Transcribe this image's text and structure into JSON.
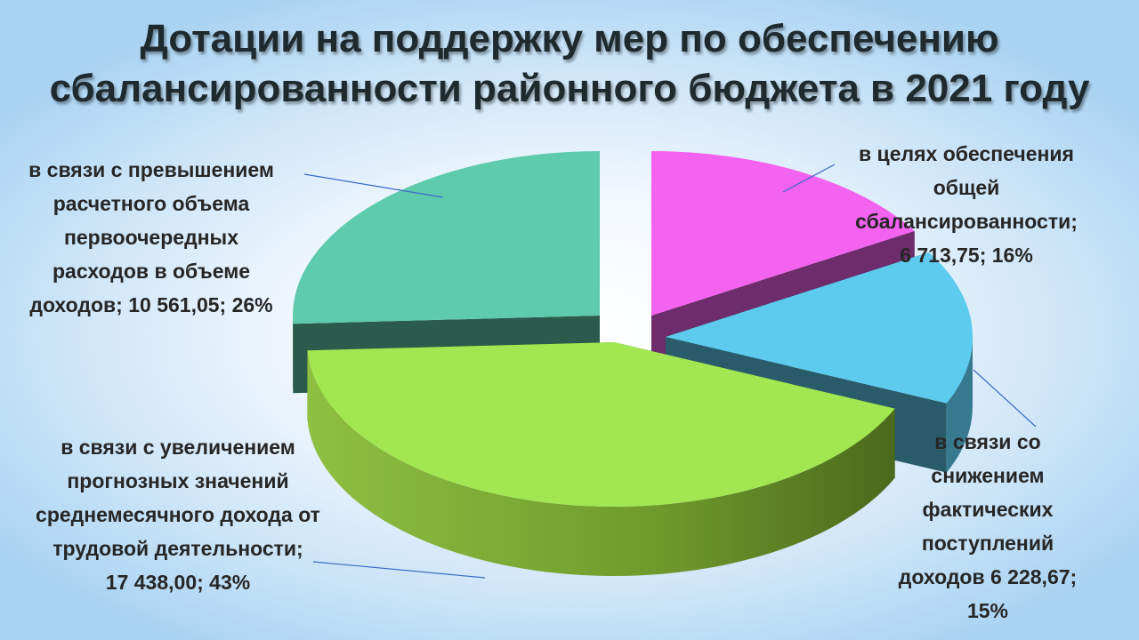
{
  "chart_data": {
    "type": "pie",
    "title_lines": [
      "Дотации на поддержку мер по обеспечению",
      "сбалансированности районного бюджета в 2021 году"
    ],
    "slices": [
      {
        "key": "balance",
        "value": 6713.75,
        "percent": 16,
        "color": "#f462f0",
        "label_lines": [
          "в целях обеспечения",
          "общей",
          "сбалансированности;",
          "6 713,75; 16%"
        ]
      },
      {
        "key": "revenue",
        "value": 6228.67,
        "percent": 15,
        "color": "#5ccbee",
        "label_lines": [
          "в связи со",
          "снижением",
          "фактических",
          "поступлений",
          "доходов 6 228,67;",
          "15%"
        ]
      },
      {
        "key": "forecast",
        "value": 17438.0,
        "percent": 43,
        "color": "#a2e652",
        "label_lines": [
          "в связи с увеличением",
          "прогнозных значений",
          "среднемесячного дохода от",
          "трудовой деятельности;",
          "17 438,00; 43%"
        ]
      },
      {
        "key": "expenses",
        "value": 10561.05,
        "percent": 26,
        "color": "#5ecbac",
        "label_lines": [
          "в связи с превышением",
          "расчетного объема",
          "первоочередных",
          "расходов в объеме",
          "доходов; 10 561,05; 26%"
        ]
      }
    ]
  }
}
